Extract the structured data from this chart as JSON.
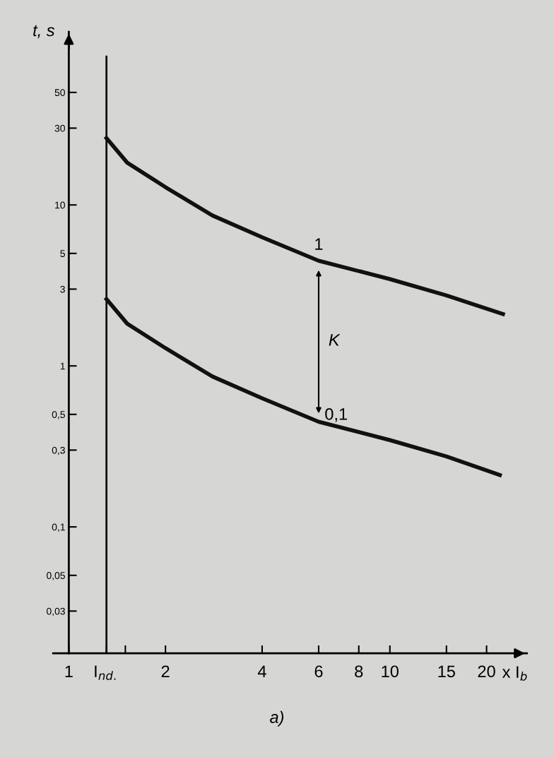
{
  "chart_data": {
    "type": "line",
    "xlabel": "x I$_{b}$",
    "ylabel": "t, s",
    "log": "xy",
    "grid": false,
    "legend": false,
    "marker": "none",
    "line_style": "solid",
    "xlim": [
      0.894,
      26.7
    ],
    "ylim": [
      0.0164,
      119
    ],
    "xticks": [
      {
        "value": 1,
        "label": "1"
      },
      {
        "value": 1.31,
        "label": "I$_{nd.}$"
      },
      {
        "value": 1.5,
        "label": null
      },
      2,
      4,
      6,
      8,
      10,
      15,
      20
    ],
    "yticks": [
      {
        "value": 0.03,
        "label": "0,03"
      },
      {
        "value": 0.05,
        "label": "0,05"
      },
      {
        "value": 0.1,
        "label": "0,1"
      },
      {
        "value": 0.3,
        "label": "0,3"
      },
      {
        "value": 0.5,
        "label": "0,5"
      },
      1,
      3,
      5,
      10,
      30,
      50
    ],
    "series": [
      {
        "color": "#111111",
        "x": [
          1.31,
          1.52,
          2,
          2.8,
          4,
          6,
          10,
          15,
          22.5
        ],
        "values": [
          26,
          18.3,
          12.9,
          8.6,
          6.3,
          4.5,
          3.46,
          2.74,
          2.1
        ]
      },
      {
        "color": "#111111",
        "x": [
          1.31,
          1.52,
          2,
          2.8,
          4,
          6,
          10,
          15,
          22
        ],
        "values": [
          2.6,
          1.83,
          1.29,
          0.86,
          0.63,
          0.45,
          0.346,
          0.274,
          0.21
        ]
      }
    ],
    "ref_lines": [
      {
        "axis": "x",
        "value": 1.31,
        "color": "#111111"
      }
    ],
    "annotations": [
      {
        "text": "1",
        "x": 6,
        "y": 4.6
      },
      {
        "text": "0,1",
        "x": 6,
        "y": 0.44
      },
      "K",
      "a)"
    ]
  }
}
